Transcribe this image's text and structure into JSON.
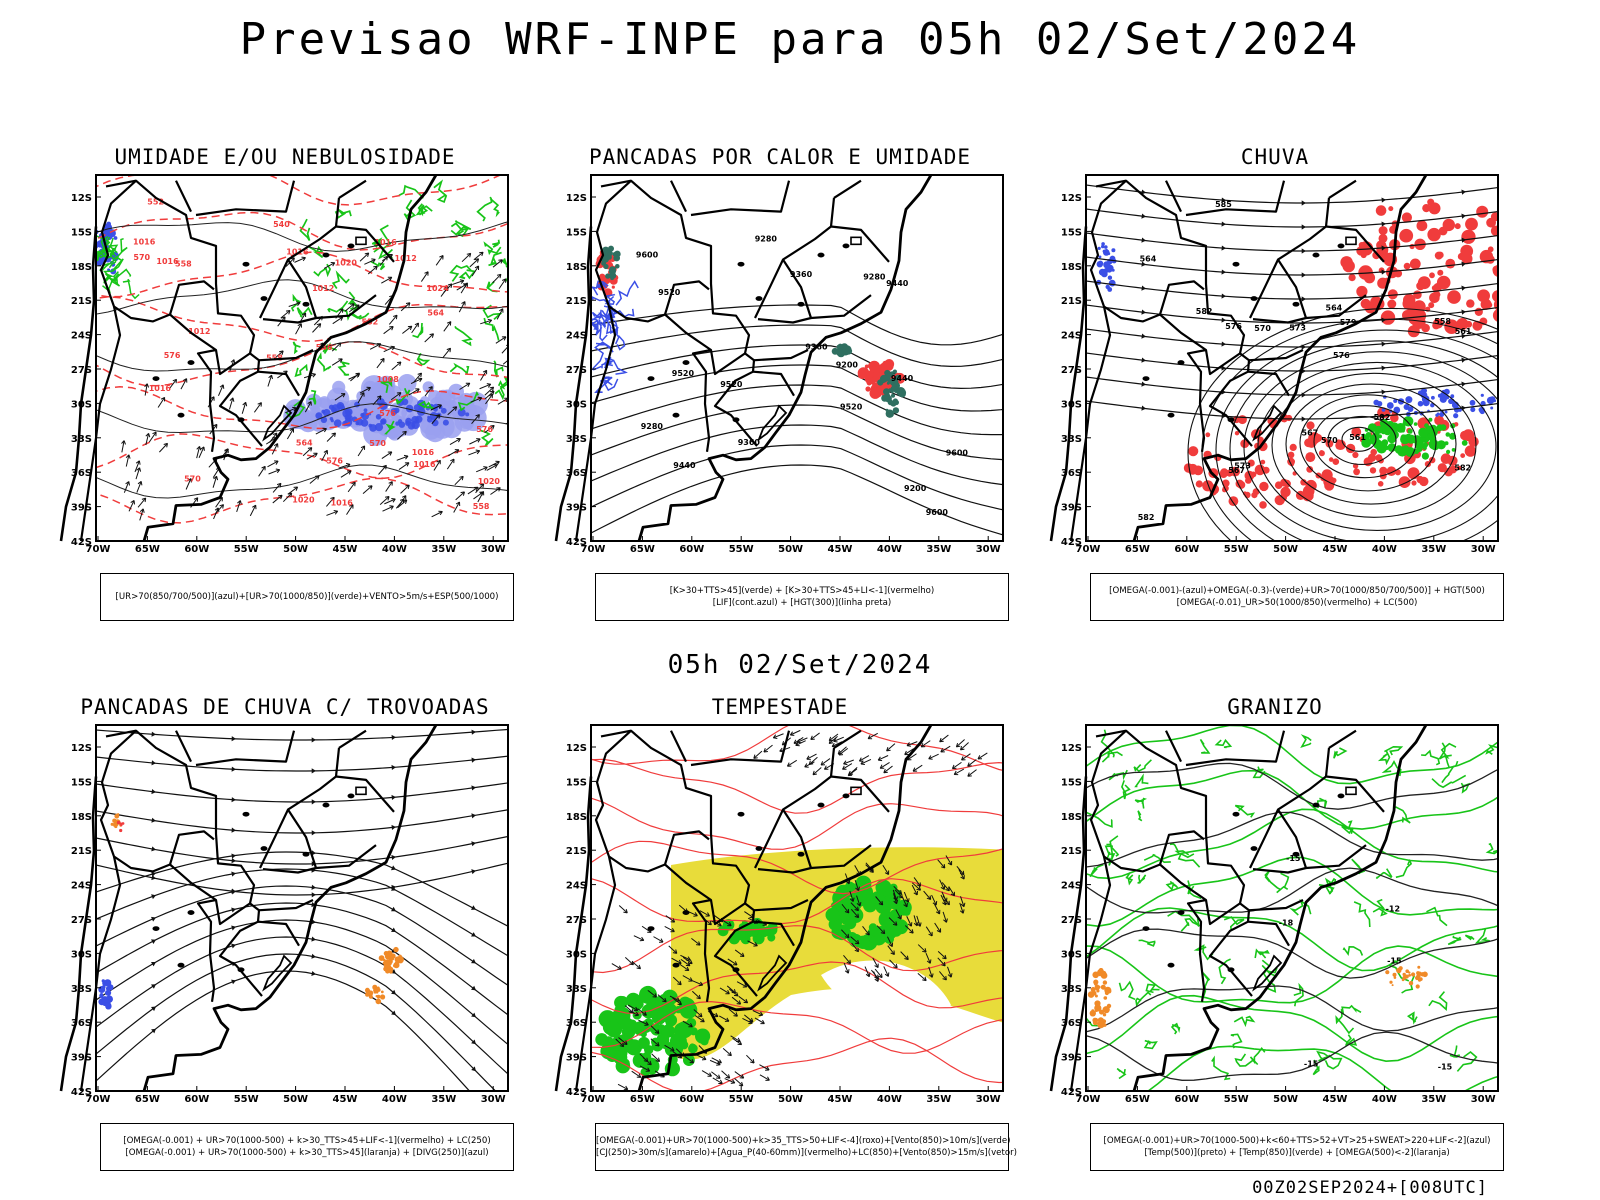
{
  "header": {
    "main_title": "Previsao WRF-INPE  para 05h 02/Set/2024",
    "mid_title": "05h 02/Set/2024",
    "footer": "00Z02SEP2024+[008UTC]"
  },
  "axes": {
    "lat_labels": [
      "12S",
      "15S",
      "18S",
      "21S",
      "24S",
      "27S",
      "30S",
      "33S",
      "36S",
      "39S",
      "42S"
    ],
    "lon_labels": [
      "70W",
      "65W",
      "60W",
      "55W",
      "50W",
      "45W",
      "40W",
      "35W",
      "30W"
    ]
  },
  "panels": [
    {
      "key": "umidade",
      "title": "UMIDADE E/OU NEBULOSIDADE",
      "legend": [
        "[UR>70(850/700/500)](azul)+[UR>70(1000/850)](verde)+VENTO>5m/s+ESP(500/1000)"
      ],
      "contour_labels": [
        "1012",
        "1016",
        "1016",
        "1024",
        "1020",
        "1016",
        "1016",
        "1016",
        "1012",
        "1016",
        "1016",
        "1020",
        "1008",
        "1016",
        "1020",
        "1012",
        "576",
        "570",
        "576",
        "576",
        "570",
        "564",
        "552",
        "558",
        "564",
        "558",
        "552",
        "558",
        "546",
        "540",
        "570",
        "576"
      ],
      "layers": {
        "blue": true,
        "green": true,
        "red": true,
        "arrows": "dense-east"
      }
    },
    {
      "key": "calor",
      "title": "PANCADAS POR CALOR E UMIDADE",
      "legend": [
        "[K>30+TTS>45](verde) + [K>30+TTS>45+LI<-1](vermelho)",
        "[LIF](cont.azul) + [HGT(300)](linha preta)"
      ],
      "contour_labels": [
        "9600",
        "9520",
        "9520",
        "9600",
        "9600",
        "9520",
        "9440",
        "9520",
        "9440",
        "9360",
        "9280",
        "9200",
        "9360",
        "9280",
        "9200",
        "9280",
        "9440",
        "9360"
      ],
      "layers": {
        "blue": true,
        "green": true,
        "red": true,
        "arrows": "none"
      }
    },
    {
      "key": "chuva",
      "title": "CHUVA",
      "legend": [
        "[OMEGA(-0.001)-(azul)+OMEGA(-0.3)-(verde)+UR>70(1000/850/700/500)] + HGT(500)",
        "[OMEGA(-0.01)_UR>50(1000/850)(vermelho) + LC(500)"
      ],
      "contour_labels": [
        "582",
        "582",
        "585",
        "582",
        "582",
        "579",
        "576",
        "573",
        "570",
        "567",
        "564",
        "561",
        "576",
        "573",
        "570",
        "567",
        "564",
        "561",
        "558"
      ],
      "layers": {
        "blue": true,
        "green": true,
        "red": true,
        "arrows": "streamlines-low"
      }
    },
    {
      "key": "trovoadas",
      "title": "PANCADAS DE CHUVA C/ TROVOADAS",
      "legend": [
        "[OMEGA(-0.001) + UR>70(1000-500) + k>30_TTS>45+LIF<-1](vermelho) + LC(250)",
        "[OMEGA(-0.001) + UR>70(1000-500) + k>30_TTS>45](laranja) + [DIVG(250)](azul)"
      ],
      "contour_labels": [],
      "layers": {
        "blue": true,
        "orange": true,
        "red": true,
        "arrows": "streamlines-east"
      }
    },
    {
      "key": "tempestade",
      "title": "TEMPESTADE",
      "legend": [
        "[OMEGA(-0.001)+UR>70(1000-500)+k>35_TTS>50+LIF<-4](roxo)+[Vento(850)>10m/s](verde)",
        "[CJ(250)>30m/s](amarelo)+[Agua_P(40-60mm)](vermelho)+LC(850)+[Vento(850)>15m/s](vetor)"
      ],
      "contour_labels": [],
      "layers": {
        "yellow": true,
        "green": true,
        "red": true,
        "arrows": "jet"
      }
    },
    {
      "key": "granizo",
      "title": "GRANIZO",
      "legend": [
        "[OMEGA(-0.001)+UR>70(1000-500)+k<60+TTS>52+VT>25+SWEAT>220+LIF<-2](azul)",
        "[Temp(500)](preto) + [Temp(850)](verde) + [OMEGA(500)<-2](laranja)"
      ],
      "contour_labels": [
        "-15",
        "-15",
        "-15",
        "-15",
        "-12",
        "-18"
      ],
      "layers": {
        "green": true,
        "orange": true,
        "arrows": "none"
      }
    }
  ],
  "colors": {
    "blue": "#3b4fe6",
    "lightblue": "#9aa0f0",
    "green": "#18c418",
    "darkgreen": "#0a8a0a",
    "red": "#f03c3c",
    "orange": "#f08a28",
    "yellow": "#e8dc3a",
    "teal": "#2f6f60"
  }
}
